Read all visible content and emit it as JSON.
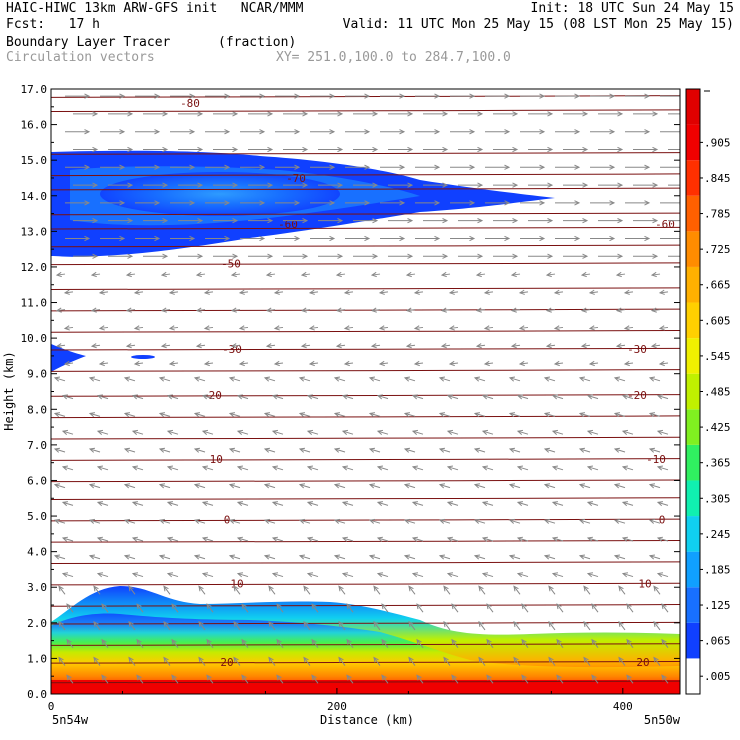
{
  "header": {
    "line1_left": "HAIC-HIWC 13km ARW-GFS init   NCAR/MMM",
    "line1_right": "Init: 18 UTC Sun 24 May 15",
    "line2_left": "Fcst:   17 h",
    "line2_right": "Valid: 11 UTC Mon 25 May 15 (08 LST Mon 25 May 15)",
    "line3_field": "Boundary Layer Tracer",
    "line3_unit": "(fraction)",
    "line4_field": "Circulation vectors",
    "line4_xy": "XY= 251.0,100.0 to 284.7,100.0"
  },
  "chart_data": {
    "type": "heatmap",
    "title": "Boundary Layer Tracer",
    "unit": "(fraction)",
    "xlabel": "Distance (km)",
    "ylabel": "Height (km)",
    "xlim": [
      0,
      440
    ],
    "ylim": [
      0,
      17
    ],
    "x_ticks": [
      0,
      200,
      400
    ],
    "x_end_labels": {
      "left": "5n54w",
      "right": "5n50w"
    },
    "y_ticks": [
      "0.0",
      "1.0",
      "2.0",
      "3.0",
      "4.0",
      "5.0",
      "6.0",
      "7.0",
      "8.0",
      "9.0",
      "10.0",
      "11.0",
      "12.0",
      "13.0",
      "14.0",
      "15.0",
      "16.0",
      "17.0"
    ],
    "colorbar": {
      "labels": [
        ".005",
        ".065",
        ".125",
        ".185",
        ".245",
        ".305",
        ".365",
        ".425",
        ".485",
        ".545",
        ".605",
        ".665",
        ".725",
        ".785",
        ".845",
        ".905"
      ],
      "colors": [
        "#ffffff",
        "#1040ff",
        "#1870ff",
        "#10a0ff",
        "#10d0f0",
        "#10f0b0",
        "#30f060",
        "#80f020",
        "#c0f000",
        "#f0f000",
        "#ffd000",
        "#ffb000",
        "#ff8c00",
        "#ff6000",
        "#ff3000",
        "#f00000"
      ]
    },
    "temperature_contours": [
      {
        "label": "-80",
        "y": 16.6
      },
      {
        "label": "-70",
        "y": 14.5
      },
      {
        "label": "-60",
        "y": 13.2
      },
      {
        "label": "-50",
        "y": 12.1
      },
      {
        "label": "-30",
        "y": 9.7
      },
      {
        "label": "-20",
        "y": 8.4
      },
      {
        "label": "-10",
        "y": 6.6
      },
      {
        "label": "0",
        "y": 4.9
      },
      {
        "label": "10",
        "y": 3.1
      },
      {
        "label": "20",
        "y": 0.9
      }
    ],
    "vector_field": {
      "name": "Circulation vectors",
      "upper_flow": "eastward",
      "lower_flow": "westward/upward"
    }
  }
}
